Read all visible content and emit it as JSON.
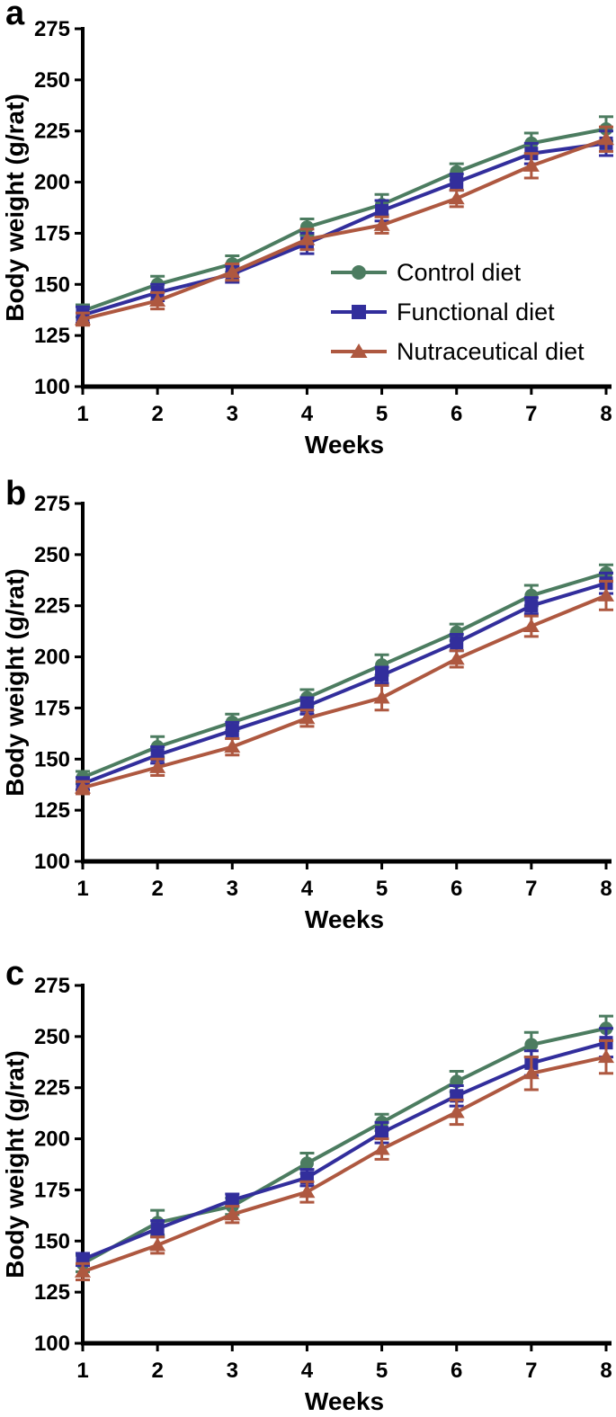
{
  "figure": {
    "panels": [
      {
        "label": "a"
      },
      {
        "label": "b"
      },
      {
        "label": "c"
      }
    ]
  },
  "colors": {
    "control": "#4C7C60",
    "functional": "#322E9C",
    "nutraceutical": "#AE5840",
    "axis": "#000000",
    "text": "#000000"
  },
  "chart_data": [
    {
      "type": "line",
      "panel": "a",
      "xlabel": "Weeks",
      "ylabel": "Body weight (g/rat)",
      "x": [
        1,
        2,
        3,
        4,
        5,
        6,
        7,
        8
      ],
      "xlim": [
        1,
        8
      ],
      "ylim": [
        100,
        275
      ],
      "yticks": [
        100,
        125,
        150,
        175,
        200,
        225,
        250,
        275
      ],
      "xticks": [
        1,
        2,
        3,
        4,
        5,
        6,
        7,
        8
      ],
      "grid": false,
      "legend": {
        "visible": true,
        "position": "inside-right-middle",
        "entries": [
          "Control diet",
          "Functional diet",
          "Nutraceutical diet"
        ]
      },
      "series": [
        {
          "name": "Control diet",
          "marker": "circle",
          "color": "#4C7C60",
          "values": [
            137,
            150,
            160,
            178,
            189,
            205,
            219,
            226
          ],
          "errors": [
            3,
            4,
            4,
            4,
            5,
            4,
            5,
            6
          ]
        },
        {
          "name": "Functional diet",
          "marker": "square",
          "color": "#322E9C",
          "values": [
            135,
            146,
            155,
            170,
            186,
            200,
            214,
            219
          ],
          "errors": [
            4,
            4,
            4,
            5,
            5,
            4,
            5,
            6
          ]
        },
        {
          "name": "Nutraceutical diet",
          "marker": "triangle",
          "color": "#AE5840",
          "values": [
            133,
            142,
            156,
            172,
            179,
            192,
            208,
            221
          ],
          "errors": [
            3,
            4,
            4,
            5,
            4,
            4,
            6,
            6
          ]
        }
      ]
    },
    {
      "type": "line",
      "panel": "b",
      "xlabel": "Weeks",
      "ylabel": "Body weight (g/rat)",
      "x": [
        1,
        2,
        3,
        4,
        5,
        6,
        7,
        8
      ],
      "xlim": [
        1,
        8
      ],
      "ylim": [
        100,
        275
      ],
      "yticks": [
        100,
        125,
        150,
        175,
        200,
        225,
        250,
        275
      ],
      "xticks": [
        1,
        2,
        3,
        4,
        5,
        6,
        7,
        8
      ],
      "grid": false,
      "legend": {
        "visible": false,
        "entries": [
          "Control diet",
          "Functional diet",
          "Nutraceutical diet"
        ]
      },
      "series": [
        {
          "name": "Control diet",
          "marker": "circle",
          "color": "#4C7C60",
          "values": [
            141,
            156,
            168,
            180,
            196,
            212,
            230,
            241
          ],
          "errors": [
            3,
            5,
            4,
            4,
            5,
            4,
            5,
            4
          ]
        },
        {
          "name": "Functional diet",
          "marker": "square",
          "color": "#322E9C",
          "values": [
            138,
            152,
            164,
            176,
            191,
            207,
            225,
            236
          ],
          "errors": [
            3,
            4,
            4,
            4,
            4,
            4,
            4,
            5
          ]
        },
        {
          "name": "Nutraceutical diet",
          "marker": "triangle",
          "color": "#AE5840",
          "values": [
            136,
            146,
            156,
            170,
            180,
            199,
            215,
            230
          ],
          "errors": [
            3,
            4,
            4,
            4,
            6,
            4,
            5,
            7
          ]
        }
      ]
    },
    {
      "type": "line",
      "panel": "c",
      "xlabel": "Weeks",
      "ylabel": "Body weight (g/rat)",
      "x": [
        1,
        2,
        3,
        4,
        5,
        6,
        7,
        8
      ],
      "xlim": [
        1,
        8
      ],
      "ylim": [
        100,
        275
      ],
      "yticks": [
        100,
        125,
        150,
        175,
        200,
        225,
        250,
        275
      ],
      "xticks": [
        1,
        2,
        3,
        4,
        5,
        6,
        7,
        8
      ],
      "grid": false,
      "legend": {
        "visible": false,
        "entries": [
          "Control diet",
          "Functional diet",
          "Nutraceutical diet"
        ]
      },
      "series": [
        {
          "name": "Control diet",
          "marker": "circle",
          "color": "#4C7C60",
          "values": [
            139,
            159,
            167,
            188,
            208,
            228,
            246,
            254
          ],
          "errors": [
            4,
            6,
            4,
            5,
            4,
            5,
            6,
            6
          ]
        },
        {
          "name": "Functional diet",
          "marker": "square",
          "color": "#322E9C",
          "values": [
            141,
            156,
            170,
            181,
            203,
            221,
            237,
            247
          ],
          "errors": [
            3,
            4,
            3,
            4,
            5,
            5,
            6,
            7
          ]
        },
        {
          "name": "Nutraceutical diet",
          "marker": "triangle",
          "color": "#AE5840",
          "values": [
            135,
            148,
            163,
            174,
            195,
            213,
            232,
            240
          ],
          "errors": [
            4,
            4,
            4,
            5,
            5,
            6,
            8,
            8
          ]
        }
      ]
    }
  ]
}
